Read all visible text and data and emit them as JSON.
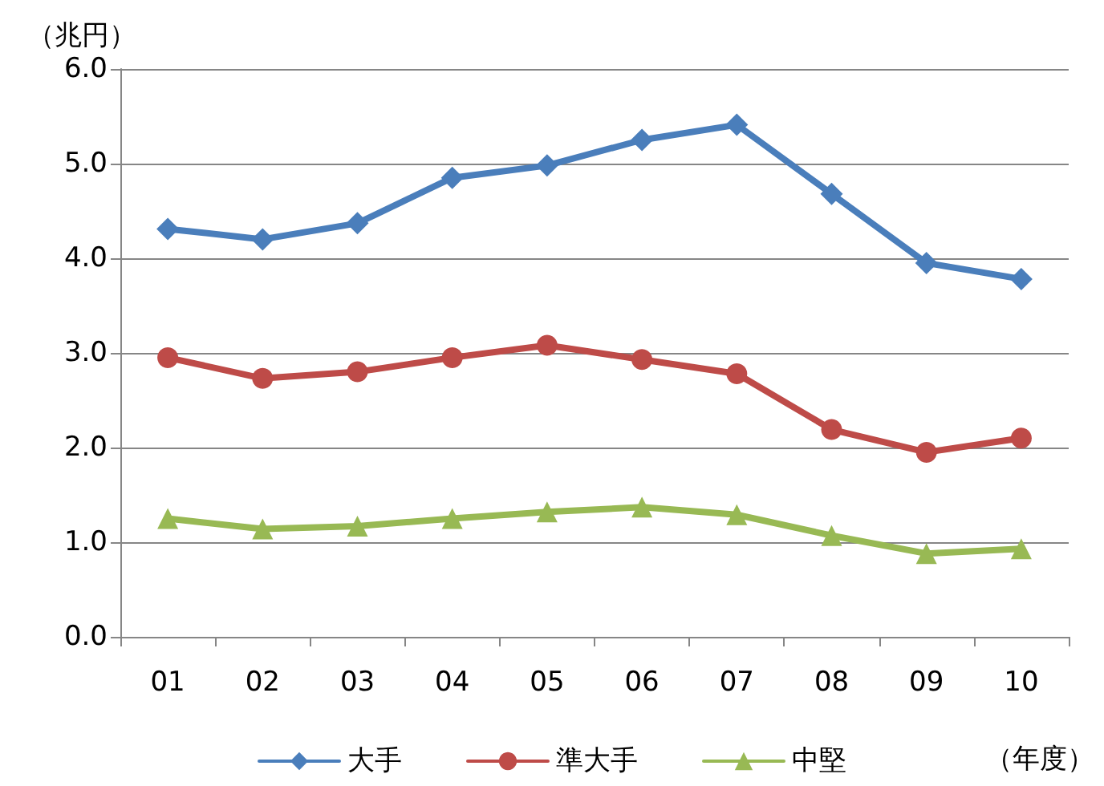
{
  "chart_data": {
    "type": "line",
    "ylabel": "（兆円）",
    "xlabel": "（年度）",
    "categories": [
      "01",
      "02",
      "03",
      "04",
      "05",
      "06",
      "07",
      "08",
      "09",
      "10"
    ],
    "series": [
      {
        "name": "大手",
        "color": "#4a7ebb",
        "marker": "diamond",
        "values": [
          4.31,
          4.2,
          4.37,
          4.85,
          4.98,
          5.25,
          5.41,
          4.68,
          3.95,
          3.78
        ]
      },
      {
        "name": "準大手",
        "color": "#be4b48",
        "marker": "circle",
        "values": [
          2.95,
          2.73,
          2.8,
          2.95,
          3.08,
          2.93,
          2.78,
          2.19,
          1.95,
          2.1
        ]
      },
      {
        "name": "中堅",
        "color": "#98b954",
        "marker": "triangle",
        "values": [
          1.25,
          1.14,
          1.17,
          1.25,
          1.32,
          1.37,
          1.29,
          1.07,
          0.88,
          0.93
        ]
      }
    ],
    "ylim": [
      0,
      6
    ],
    "yticks": [
      {
        "value": 0,
        "label": "0.0"
      },
      {
        "value": 1,
        "label": "1.0"
      },
      {
        "value": 2,
        "label": "2.0"
      },
      {
        "value": 3,
        "label": "3.0"
      },
      {
        "value": 4,
        "label": "4.0"
      },
      {
        "value": 5,
        "label": "5.0"
      },
      {
        "value": 6,
        "label": "6.0"
      }
    ],
    "grid": "y",
    "legend": "bottom",
    "line_style": "solid"
  }
}
